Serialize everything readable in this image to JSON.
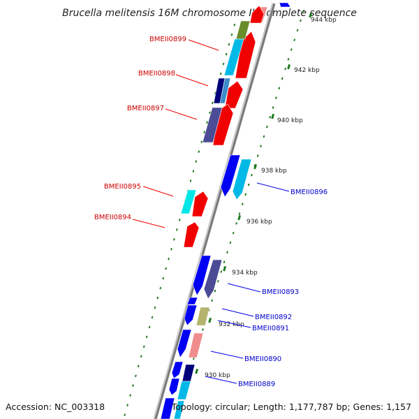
{
  "title": "Brucella melitensis 16M chromosome II, complete sequence",
  "footer": {
    "accession": "Accession: NC_003318",
    "summary": "Topology: circular; Length: 1,177,787 bp; Genes: 1,157"
  },
  "colors": {
    "backbone": "#8c8c8c",
    "tick": "#1f7a1f",
    "label_forward": "#cc0000",
    "label_reverse": "#0000cc",
    "leader_forward": "#ee0000",
    "leader_reverse": "#0000ee"
  },
  "ticks": [
    {
      "label": "944 kbp"
    },
    {
      "label": "942 kbp"
    },
    {
      "label": "940 kbp"
    },
    {
      "label": "938 kbp"
    },
    {
      "label": "936 kbp"
    },
    {
      "label": "934 kbp"
    },
    {
      "label": "932 kbp"
    },
    {
      "label": "930 kbp"
    }
  ],
  "gene_labels": [
    {
      "name": "BMEII0899",
      "strand": "forward"
    },
    {
      "name": "BMEII0898",
      "strand": "forward"
    },
    {
      "name": "BMEII0897",
      "strand": "forward"
    },
    {
      "name": "BMEII0895",
      "strand": "forward"
    },
    {
      "name": "BMEII0894",
      "strand": "forward"
    },
    {
      "name": "BMEII0896",
      "strand": "reverse"
    },
    {
      "name": "BMEII0893",
      "strand": "reverse"
    },
    {
      "name": "BMEII0892",
      "strand": "reverse"
    },
    {
      "name": "BMEII0891",
      "strand": "reverse"
    },
    {
      "name": "BMEII0890",
      "strand": "reverse"
    },
    {
      "name": "BMEII0889",
      "strand": "reverse"
    }
  ],
  "feature_colors": [
    "#f10000",
    "#f18c8c",
    "#0000f5",
    "#00b9e6",
    "#00e6e6",
    "#4b4b96",
    "#00007a",
    "#8c8c3c",
    "#b4b46e",
    "#6b8c2a",
    "#3c8cc8",
    "#d2d2d2"
  ]
}
